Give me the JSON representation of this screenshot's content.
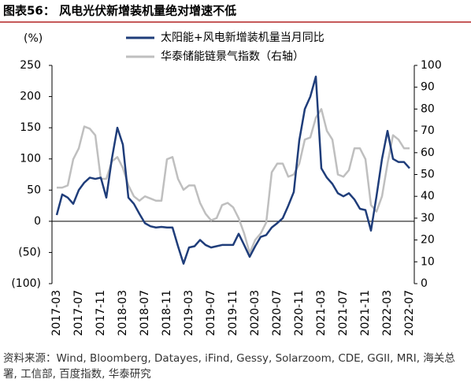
{
  "chart_data": {
    "type": "line",
    "title": "图表56： 风电光伏新增装机量绝对增速不低",
    "y_label": "(%)",
    "categories": [
      "2017-03",
      null,
      null,
      null,
      "2017-07",
      null,
      null,
      null,
      "2017-11",
      null,
      null,
      null,
      "2018-03",
      null,
      null,
      null,
      "2018-07",
      null,
      null,
      null,
      "2018-11",
      null,
      null,
      null,
      "2019-03",
      null,
      null,
      null,
      "2019-07",
      null,
      null,
      null,
      "2019-11",
      null,
      null,
      null,
      "2020-03",
      null,
      null,
      null,
      "2020-07",
      null,
      null,
      null,
      "2020-11",
      null,
      null,
      null,
      "2021-03",
      null,
      null,
      null,
      "2021-07",
      null,
      null,
      null,
      "2021-11",
      null,
      null,
      null,
      "2022-03",
      null,
      null,
      null,
      "2022-07"
    ],
    "series": [
      {
        "name": "太阳能+风电新增装机量当月同比",
        "color": "#1f3d7a",
        "values": [
          10,
          43,
          38,
          28,
          50,
          62,
          70,
          68,
          70,
          38,
          100,
          150,
          123,
          38,
          28,
          12,
          -3,
          -8,
          -10,
          -9,
          -10,
          -10,
          -40,
          -68,
          -42,
          -40,
          -30,
          -38,
          -42,
          -40,
          -38,
          -38,
          -38,
          -20,
          -38,
          -57,
          -40,
          -25,
          -22,
          -10,
          -3,
          5,
          25,
          47,
          130,
          180,
          200,
          232,
          85,
          70,
          60,
          45,
          40,
          45,
          35,
          20,
          18,
          -15,
          40,
          100,
          145,
          100,
          95,
          95,
          85
        ]
      },
      {
        "name": "华泰储能链景气指数（右轴）",
        "color": "#bfbfbf",
        "axis": "y2",
        "values": [
          44,
          44,
          45,
          57,
          62,
          72,
          71,
          68,
          48,
          48,
          56,
          58,
          53,
          45,
          40,
          38,
          40,
          39,
          38,
          38,
          57,
          58,
          48,
          43,
          45,
          45,
          37,
          32,
          29,
          30,
          36,
          37,
          35,
          30,
          23,
          14,
          20,
          23,
          28,
          51,
          55,
          55,
          49,
          50,
          55,
          66,
          67,
          76,
          80,
          70,
          66,
          50,
          49,
          52,
          62,
          62,
          57,
          36,
          33,
          40,
          55,
          68,
          66,
          62,
          62
        ]
      }
    ],
    "ylim": [
      -100,
      250
    ],
    "yticks": [
      {
        "value": -100,
        "label": "(100)"
      },
      {
        "value": -50,
        "label": "(50)"
      },
      0,
      50,
      100,
      150,
      200,
      250
    ],
    "y2lim": [
      0,
      100
    ],
    "y2ticks": [
      0,
      10,
      20,
      30,
      40,
      50,
      60,
      70,
      80,
      90,
      100
    ]
  },
  "source": "资料来源：Wind, Bloomberg, Datayes, iFind, Gessy, Solarzoom, CDE, GGII, MRI, 海关总署, 工信部, 百度指数, 华泰研究"
}
